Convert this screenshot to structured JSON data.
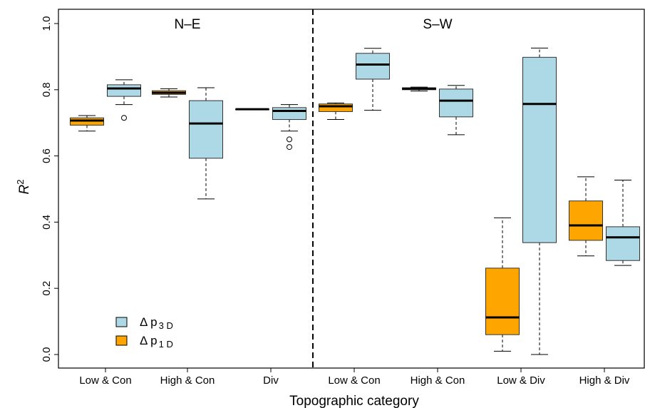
{
  "chart_data": {
    "type": "boxplot",
    "title": "",
    "xlabel": "Topographic category",
    "ylabel": "R",
    "ylabel_superscript": "2",
    "ylim": [
      0.0,
      1.0
    ],
    "yticks": [
      "0.0",
      "0.2",
      "0.4",
      "0.6",
      "0.8",
      "1.0"
    ],
    "grid": false,
    "panels": [
      "N–E",
      "S–W"
    ],
    "categories": [
      "Low & Con",
      "High & Con",
      "Div",
      "Low & Con",
      "High & Con",
      "Low & Div",
      "High & Div"
    ],
    "legend": {
      "position": "bottom-left",
      "entries": [
        {
          "symbol": "Δ p",
          "subscript": "3 D",
          "color": "#add8e6"
        },
        {
          "symbol": "Δ p",
          "subscript": "1 D",
          "color": "#ffa500"
        }
      ]
    },
    "series": [
      {
        "key": "p1D",
        "color": "#ffa500",
        "boxes": [
          {
            "category": 0,
            "min": 0.675,
            "q1": 0.693,
            "median": 0.707,
            "q3": 0.715,
            "max": 0.722,
            "outliers": []
          },
          {
            "category": 1,
            "min": 0.778,
            "q1": 0.786,
            "median": 0.791,
            "q3": 0.797,
            "max": 0.803,
            "outliers": []
          },
          {
            "category": 2,
            "min": 0.741,
            "q1": 0.741,
            "median": 0.741,
            "q3": 0.741,
            "max": 0.741,
            "outliers": []
          },
          {
            "category": 3,
            "min": 0.71,
            "q1": 0.734,
            "median": 0.75,
            "q3": 0.757,
            "max": 0.76,
            "outliers": []
          },
          {
            "category": 4,
            "min": 0.796,
            "q1": 0.8,
            "median": 0.803,
            "q3": 0.806,
            "max": 0.808,
            "outliers": []
          },
          {
            "category": 5,
            "min": 0.01,
            "q1": 0.06,
            "median": 0.112,
            "q3": 0.261,
            "max": 0.413,
            "outliers": []
          },
          {
            "category": 6,
            "min": 0.298,
            "q1": 0.345,
            "median": 0.39,
            "q3": 0.464,
            "max": 0.537,
            "outliers": []
          }
        ]
      },
      {
        "key": "p3D",
        "color": "#add8e6",
        "boxes": [
          {
            "category": 0,
            "min": 0.755,
            "q1": 0.78,
            "median": 0.804,
            "q3": 0.815,
            "max": 0.83,
            "outliers": [
              0.715
            ]
          },
          {
            "category": 1,
            "min": 0.47,
            "q1": 0.593,
            "median": 0.698,
            "q3": 0.767,
            "max": 0.806,
            "outliers": []
          },
          {
            "category": 2,
            "min": 0.675,
            "q1": 0.71,
            "median": 0.736,
            "q3": 0.746,
            "max": 0.755,
            "outliers": [
              0.65,
              0.627
            ]
          },
          {
            "category": 3,
            "min": 0.738,
            "q1": 0.832,
            "median": 0.876,
            "q3": 0.91,
            "max": 0.925,
            "outliers": []
          },
          {
            "category": 4,
            "min": 0.664,
            "q1": 0.718,
            "median": 0.767,
            "q3": 0.802,
            "max": 0.813,
            "outliers": []
          },
          {
            "category": 5,
            "min": 0.0,
            "q1": 0.338,
            "median": 0.757,
            "q3": 0.898,
            "max": 0.926,
            "outliers": []
          },
          {
            "category": 6,
            "min": 0.269,
            "q1": 0.284,
            "median": 0.354,
            "q3": 0.386,
            "max": 0.527,
            "outliers": []
          }
        ]
      }
    ]
  }
}
